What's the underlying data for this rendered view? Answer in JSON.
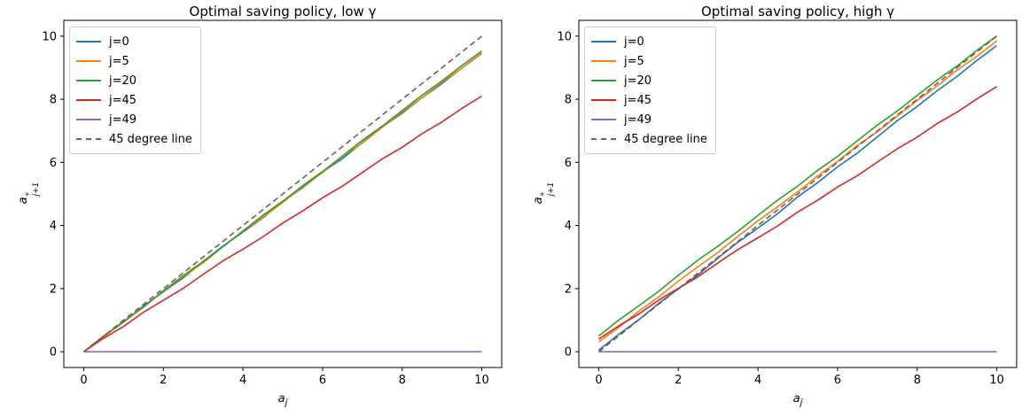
{
  "figure": {
    "background": "#ffffff"
  },
  "chart_data": [
    {
      "type": "line",
      "title": "Optimal saving policy, low γ",
      "xlabel": {
        "base": "a",
        "sub": "j"
      },
      "ylabel": {
        "base": "a",
        "sup": "*",
        "sub": "j+1"
      },
      "xlim": [
        -0.5,
        10.5
      ],
      "ylim": [
        -0.5,
        10.5
      ],
      "xticks": [
        0,
        2,
        4,
        6,
        8,
        10
      ],
      "yticks": [
        0,
        2,
        4,
        6,
        8,
        10
      ],
      "grid": false,
      "legend_position": "upper left",
      "x": [
        0,
        0.5,
        1,
        1.5,
        2,
        2.5,
        3,
        3.5,
        4,
        4.5,
        5,
        5.5,
        6,
        6.5,
        7,
        7.5,
        8,
        8.5,
        9,
        9.5,
        10
      ],
      "series": [
        {
          "name": "j=0",
          "color": "#1f77b4",
          "dash": false,
          "y": [
            0,
            0.49,
            0.94,
            1.45,
            1.9,
            2.34,
            2.86,
            3.35,
            3.79,
            4.24,
            4.76,
            5.2,
            5.69,
            6.12,
            6.63,
            7.12,
            7.56,
            8.05,
            8.5,
            8.99,
            9.45
          ]
        },
        {
          "name": "j=5",
          "color": "#ff7f0e",
          "dash": false,
          "y": [
            0.01,
            0.46,
            0.97,
            1.42,
            1.92,
            2.38,
            2.82,
            3.33,
            3.82,
            4.26,
            4.73,
            5.23,
            5.68,
            6.19,
            6.61,
            7.11,
            7.6,
            8.05,
            8.54,
            8.99,
            9.47
          ]
        },
        {
          "name": "j=20",
          "color": "#2ca02c",
          "dash": false,
          "y": [
            0,
            0.5,
            0.95,
            1.41,
            1.93,
            2.41,
            2.86,
            3.33,
            3.83,
            4.32,
            4.77,
            5.26,
            5.71,
            6.2,
            6.7,
            7.15,
            7.64,
            8.13,
            8.58,
            9.07,
            9.53
          ]
        },
        {
          "name": "j=45",
          "color": "#d62728",
          "dash": false,
          "y": [
            0,
            0.43,
            0.8,
            1.25,
            1.63,
            2.01,
            2.45,
            2.88,
            3.25,
            3.64,
            4.08,
            4.46,
            4.88,
            5.25,
            5.68,
            6.11,
            6.48,
            6.91,
            7.28,
            7.71,
            8.1
          ]
        },
        {
          "name": "j=49",
          "color": "#9467bd",
          "dash": false,
          "y": [
            0,
            0,
            0,
            0,
            0,
            0,
            0,
            0,
            0,
            0,
            0,
            0,
            0,
            0,
            0,
            0,
            0,
            0,
            0,
            0,
            0
          ]
        },
        {
          "name": "45 degree line",
          "color": "#8c564b",
          "dash": true,
          "points": [
            [
              0,
              0
            ],
            [
              10,
              10
            ]
          ]
        }
      ]
    },
    {
      "type": "line",
      "title": "Optimal saving policy, high γ",
      "xlabel": {
        "base": "a",
        "sub": "j"
      },
      "ylabel": {
        "base": "a",
        "sup": "*",
        "sub": "j+1"
      },
      "xlim": [
        -0.5,
        10.5
      ],
      "ylim": [
        -0.5,
        10.5
      ],
      "xticks": [
        0,
        2,
        4,
        6,
        8,
        10
      ],
      "yticks": [
        0,
        2,
        4,
        6,
        8,
        10
      ],
      "grid": false,
      "legend_position": "upper left",
      "x": [
        0,
        0.5,
        1,
        1.5,
        2,
        2.5,
        3,
        3.5,
        4,
        4.5,
        5,
        5.5,
        6,
        6.5,
        7,
        7.5,
        8,
        8.5,
        9,
        9.5,
        10
      ],
      "series": [
        {
          "name": "j=0",
          "color": "#1f77b4",
          "dash": false,
          "y": [
            0.05,
            0.55,
            1.01,
            1.53,
            1.99,
            2.44,
            2.97,
            3.47,
            3.92,
            4.38,
            4.91,
            5.36,
            5.86,
            6.3,
            6.81,
            7.32,
            7.77,
            8.27,
            8.72,
            9.23,
            9.7
          ]
        },
        {
          "name": "j=5",
          "color": "#ff7f0e",
          "dash": false,
          "y": [
            0.31,
            0.77,
            1.28,
            1.73,
            2.24,
            2.7,
            3.15,
            3.66,
            4.15,
            4.6,
            5.07,
            5.57,
            6.03,
            6.54,
            6.97,
            7.47,
            7.96,
            8.42,
            8.92,
            9.36,
            9.85
          ]
        },
        {
          "name": "j=20",
          "color": "#2ca02c",
          "dash": false,
          "y": [
            0.5,
            1.0,
            1.45,
            1.91,
            2.42,
            2.91,
            3.35,
            3.82,
            4.32,
            4.81,
            5.25,
            5.75,
            6.19,
            6.69,
            7.18,
            7.63,
            8.12,
            8.61,
            9.05,
            9.55,
            10.01
          ]
        },
        {
          "name": "j=45",
          "color": "#d62728",
          "dash": false,
          "y": [
            0.4,
            0.82,
            1.19,
            1.63,
            2.01,
            2.38,
            2.82,
            3.24,
            3.61,
            3.99,
            4.43,
            4.8,
            5.22,
            5.58,
            6.01,
            6.43,
            6.8,
            7.23,
            7.59,
            8.01,
            8.4
          ]
        },
        {
          "name": "j=49",
          "color": "#9467bd",
          "dash": false,
          "y": [
            0,
            0,
            0,
            0,
            0,
            0,
            0,
            0,
            0,
            0,
            0,
            0,
            0,
            0,
            0,
            0,
            0,
            0,
            0,
            0,
            0
          ]
        },
        {
          "name": "45 degree line",
          "color": "#8c564b",
          "dash": true,
          "points": [
            [
              0,
              0
            ],
            [
              10,
              10
            ]
          ]
        }
      ]
    }
  ]
}
